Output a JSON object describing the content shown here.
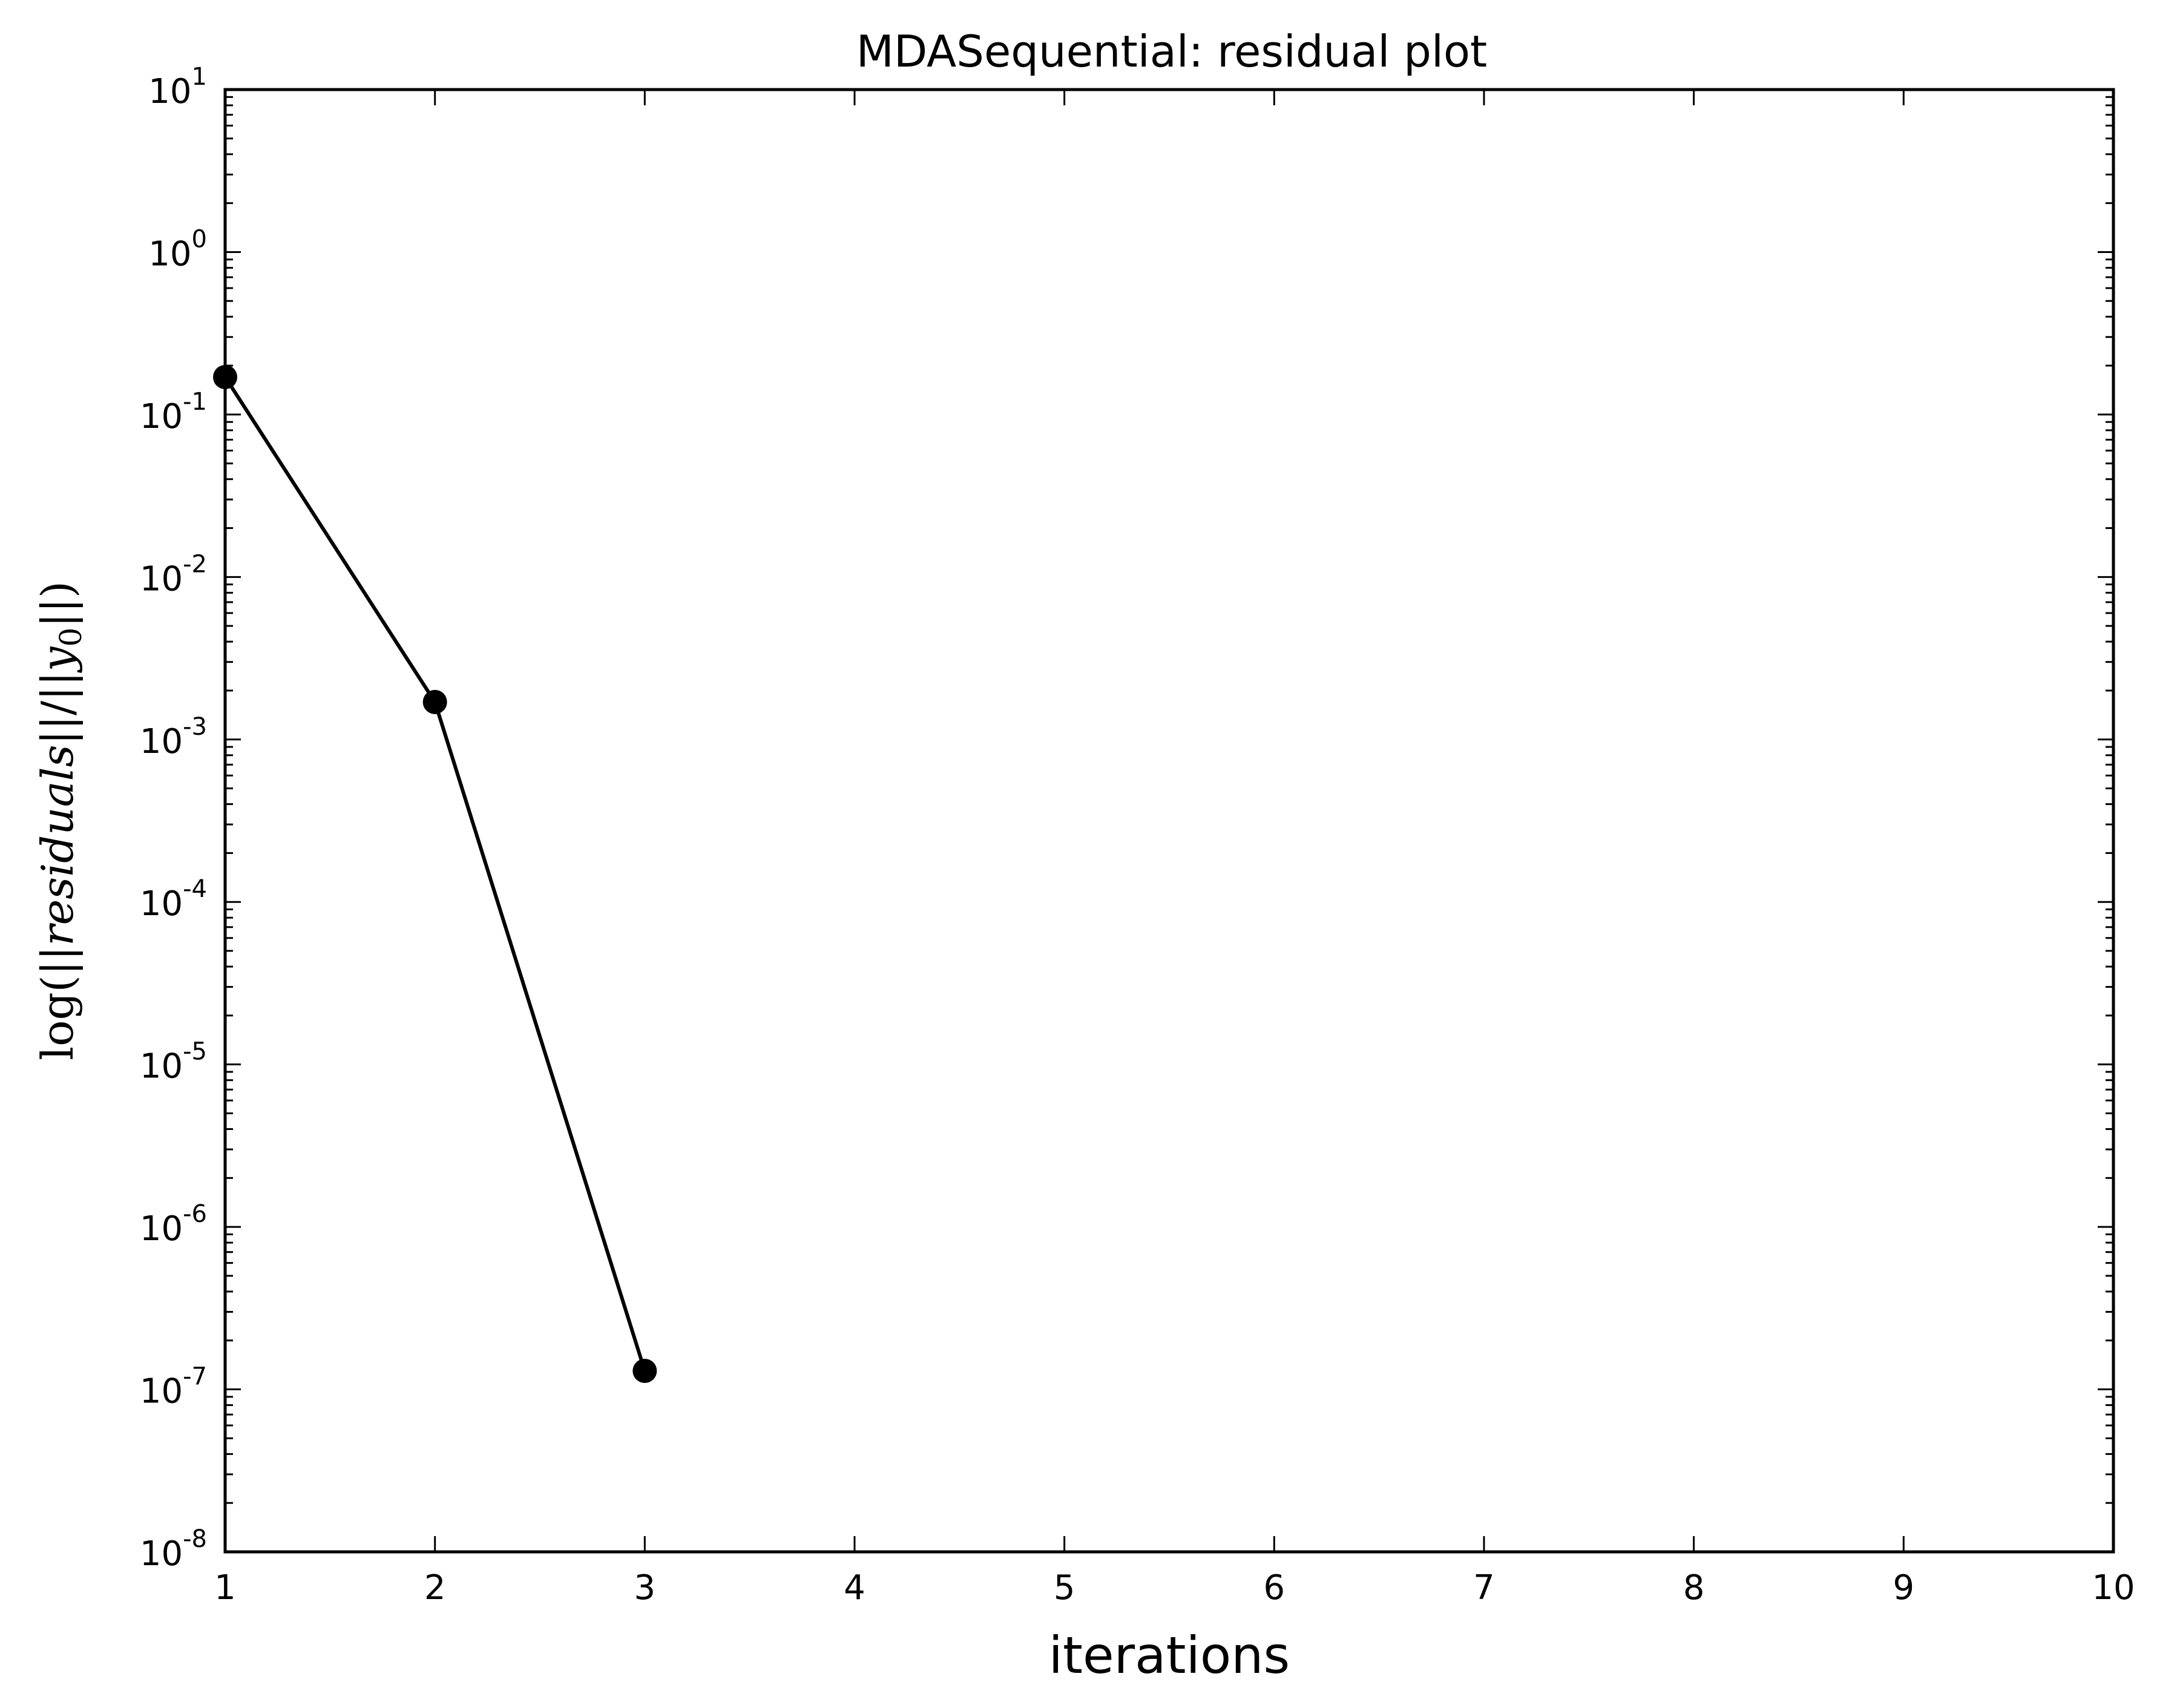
{
  "chart_data": {
    "type": "line",
    "title": "MDASequential: residual plot",
    "xlabel": "iterations",
    "ylabel": "log(||residuals||/||y0||)",
    "ylabel_parts": {
      "prefix": "log(||",
      "var": "residuals",
      "mid": "||/||",
      "y": "y",
      "sub": "0",
      "suffix": "||)"
    },
    "x_scale": "linear",
    "y_scale": "log",
    "xlim": [
      1,
      10
    ],
    "ylim": [
      1e-08,
      10
    ],
    "x_ticks": [
      "1",
      "2",
      "3",
      "4",
      "5",
      "6",
      "7",
      "8",
      "9",
      "10"
    ],
    "y_ticks": [
      {
        "value": 1e-08,
        "base": "10",
        "exp": "-8"
      },
      {
        "value": 1e-07,
        "base": "10",
        "exp": "-7"
      },
      {
        "value": 1e-06,
        "base": "10",
        "exp": "-6"
      },
      {
        "value": 1e-05,
        "base": "10",
        "exp": "-5"
      },
      {
        "value": 0.0001,
        "base": "10",
        "exp": "-4"
      },
      {
        "value": 0.001,
        "base": "10",
        "exp": "-3"
      },
      {
        "value": 0.01,
        "base": "10",
        "exp": "-2"
      },
      {
        "value": 0.1,
        "base": "10",
        "exp": "-1"
      },
      {
        "value": 1,
        "base": "10",
        "exp": "0"
      },
      {
        "value": 10,
        "base": "10",
        "exp": "1"
      }
    ],
    "grid": false,
    "series": [
      {
        "x": [
          1,
          2,
          3
        ],
        "y": [
          0.17,
          0.0017,
          1.3e-07
        ],
        "color": "#000000",
        "marker": "circle"
      }
    ]
  }
}
